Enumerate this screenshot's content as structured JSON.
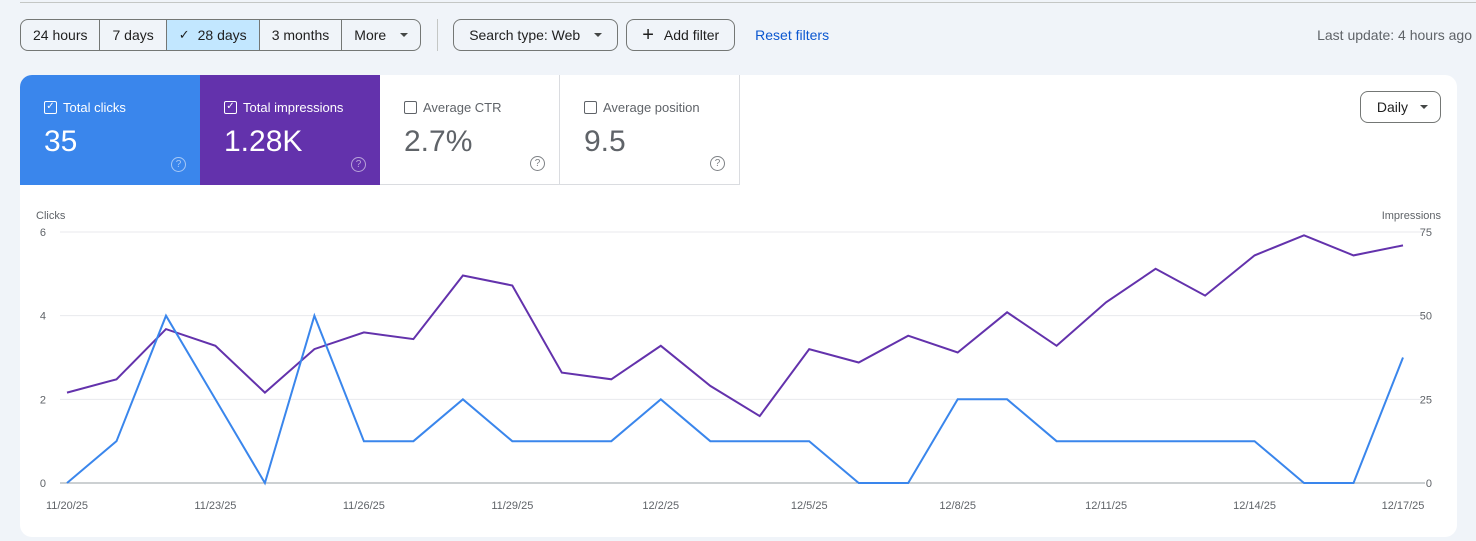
{
  "toolbar": {
    "ranges": [
      {
        "label": "24 hours",
        "active": false
      },
      {
        "label": "7 days",
        "active": false
      },
      {
        "label": "28 days",
        "active": true
      },
      {
        "label": "3 months",
        "active": false
      },
      {
        "label": "More",
        "active": false
      }
    ],
    "check_glyph": "✓",
    "search_type": "Search type: Web",
    "add_filter": "Add filter",
    "plus_glyph": "+",
    "reset_filters": "Reset filters",
    "last_update": "Last update: 4 hours ago"
  },
  "metrics": [
    {
      "label": "Total clicks",
      "value": "35",
      "checked": true,
      "color": "#3a86ec"
    },
    {
      "label": "Total impressions",
      "value": "1.28K",
      "checked": true,
      "color": "#6332ac"
    },
    {
      "label": "Average CTR",
      "value": "2.7%",
      "checked": false
    },
    {
      "label": "Average position",
      "value": "9.5",
      "checked": false
    }
  ],
  "check_mark": "✓",
  "help_glyph": "?",
  "granularity": "Daily",
  "chart_data": {
    "type": "line",
    "left_axis_label": "Clicks",
    "right_axis_label": "Impressions",
    "left_ticks": [
      "0",
      "2",
      "4",
      "6"
    ],
    "right_ticks": [
      "0",
      "25",
      "50",
      "75"
    ],
    "ylim_left": [
      0,
      6
    ],
    "ylim_right": [
      0,
      75
    ],
    "x_tick_labels": [
      "11/20/25",
      "11/23/25",
      "11/26/25",
      "11/29/25",
      "12/2/25",
      "12/5/25",
      "12/8/25",
      "12/11/25",
      "12/14/25",
      "12/17/25"
    ],
    "x": [
      "11/20/25",
      "11/21/25",
      "11/22/25",
      "11/23/25",
      "11/24/25",
      "11/25/25",
      "11/26/25",
      "11/27/25",
      "11/28/25",
      "11/29/25",
      "11/30/25",
      "12/1/25",
      "12/2/25",
      "12/3/25",
      "12/4/25",
      "12/5/25",
      "12/6/25",
      "12/7/25",
      "12/8/25",
      "12/9/25",
      "12/10/25",
      "12/11/25",
      "12/12/25",
      "12/13/25",
      "12/14/25",
      "12/15/25",
      "12/16/25",
      "12/17/25"
    ],
    "series": [
      {
        "name": "Clicks",
        "axis": "left",
        "color": "#3a86ec",
        "values": [
          0,
          1,
          4,
          2,
          0,
          4,
          1,
          1,
          2,
          1,
          1,
          1,
          2,
          1,
          1,
          1,
          0,
          0,
          2,
          2,
          1,
          1,
          1,
          1,
          1,
          0,
          0,
          3
        ]
      },
      {
        "name": "Impressions",
        "axis": "right",
        "color": "#6332ac",
        "values": [
          27,
          31,
          46,
          41,
          27,
          40,
          45,
          43,
          62,
          59,
          33,
          31,
          41,
          29,
          20,
          40,
          36,
          44,
          39,
          51,
          41,
          54,
          64,
          56,
          68,
          74,
          68,
          71
        ]
      }
    ],
    "grid": true
  }
}
